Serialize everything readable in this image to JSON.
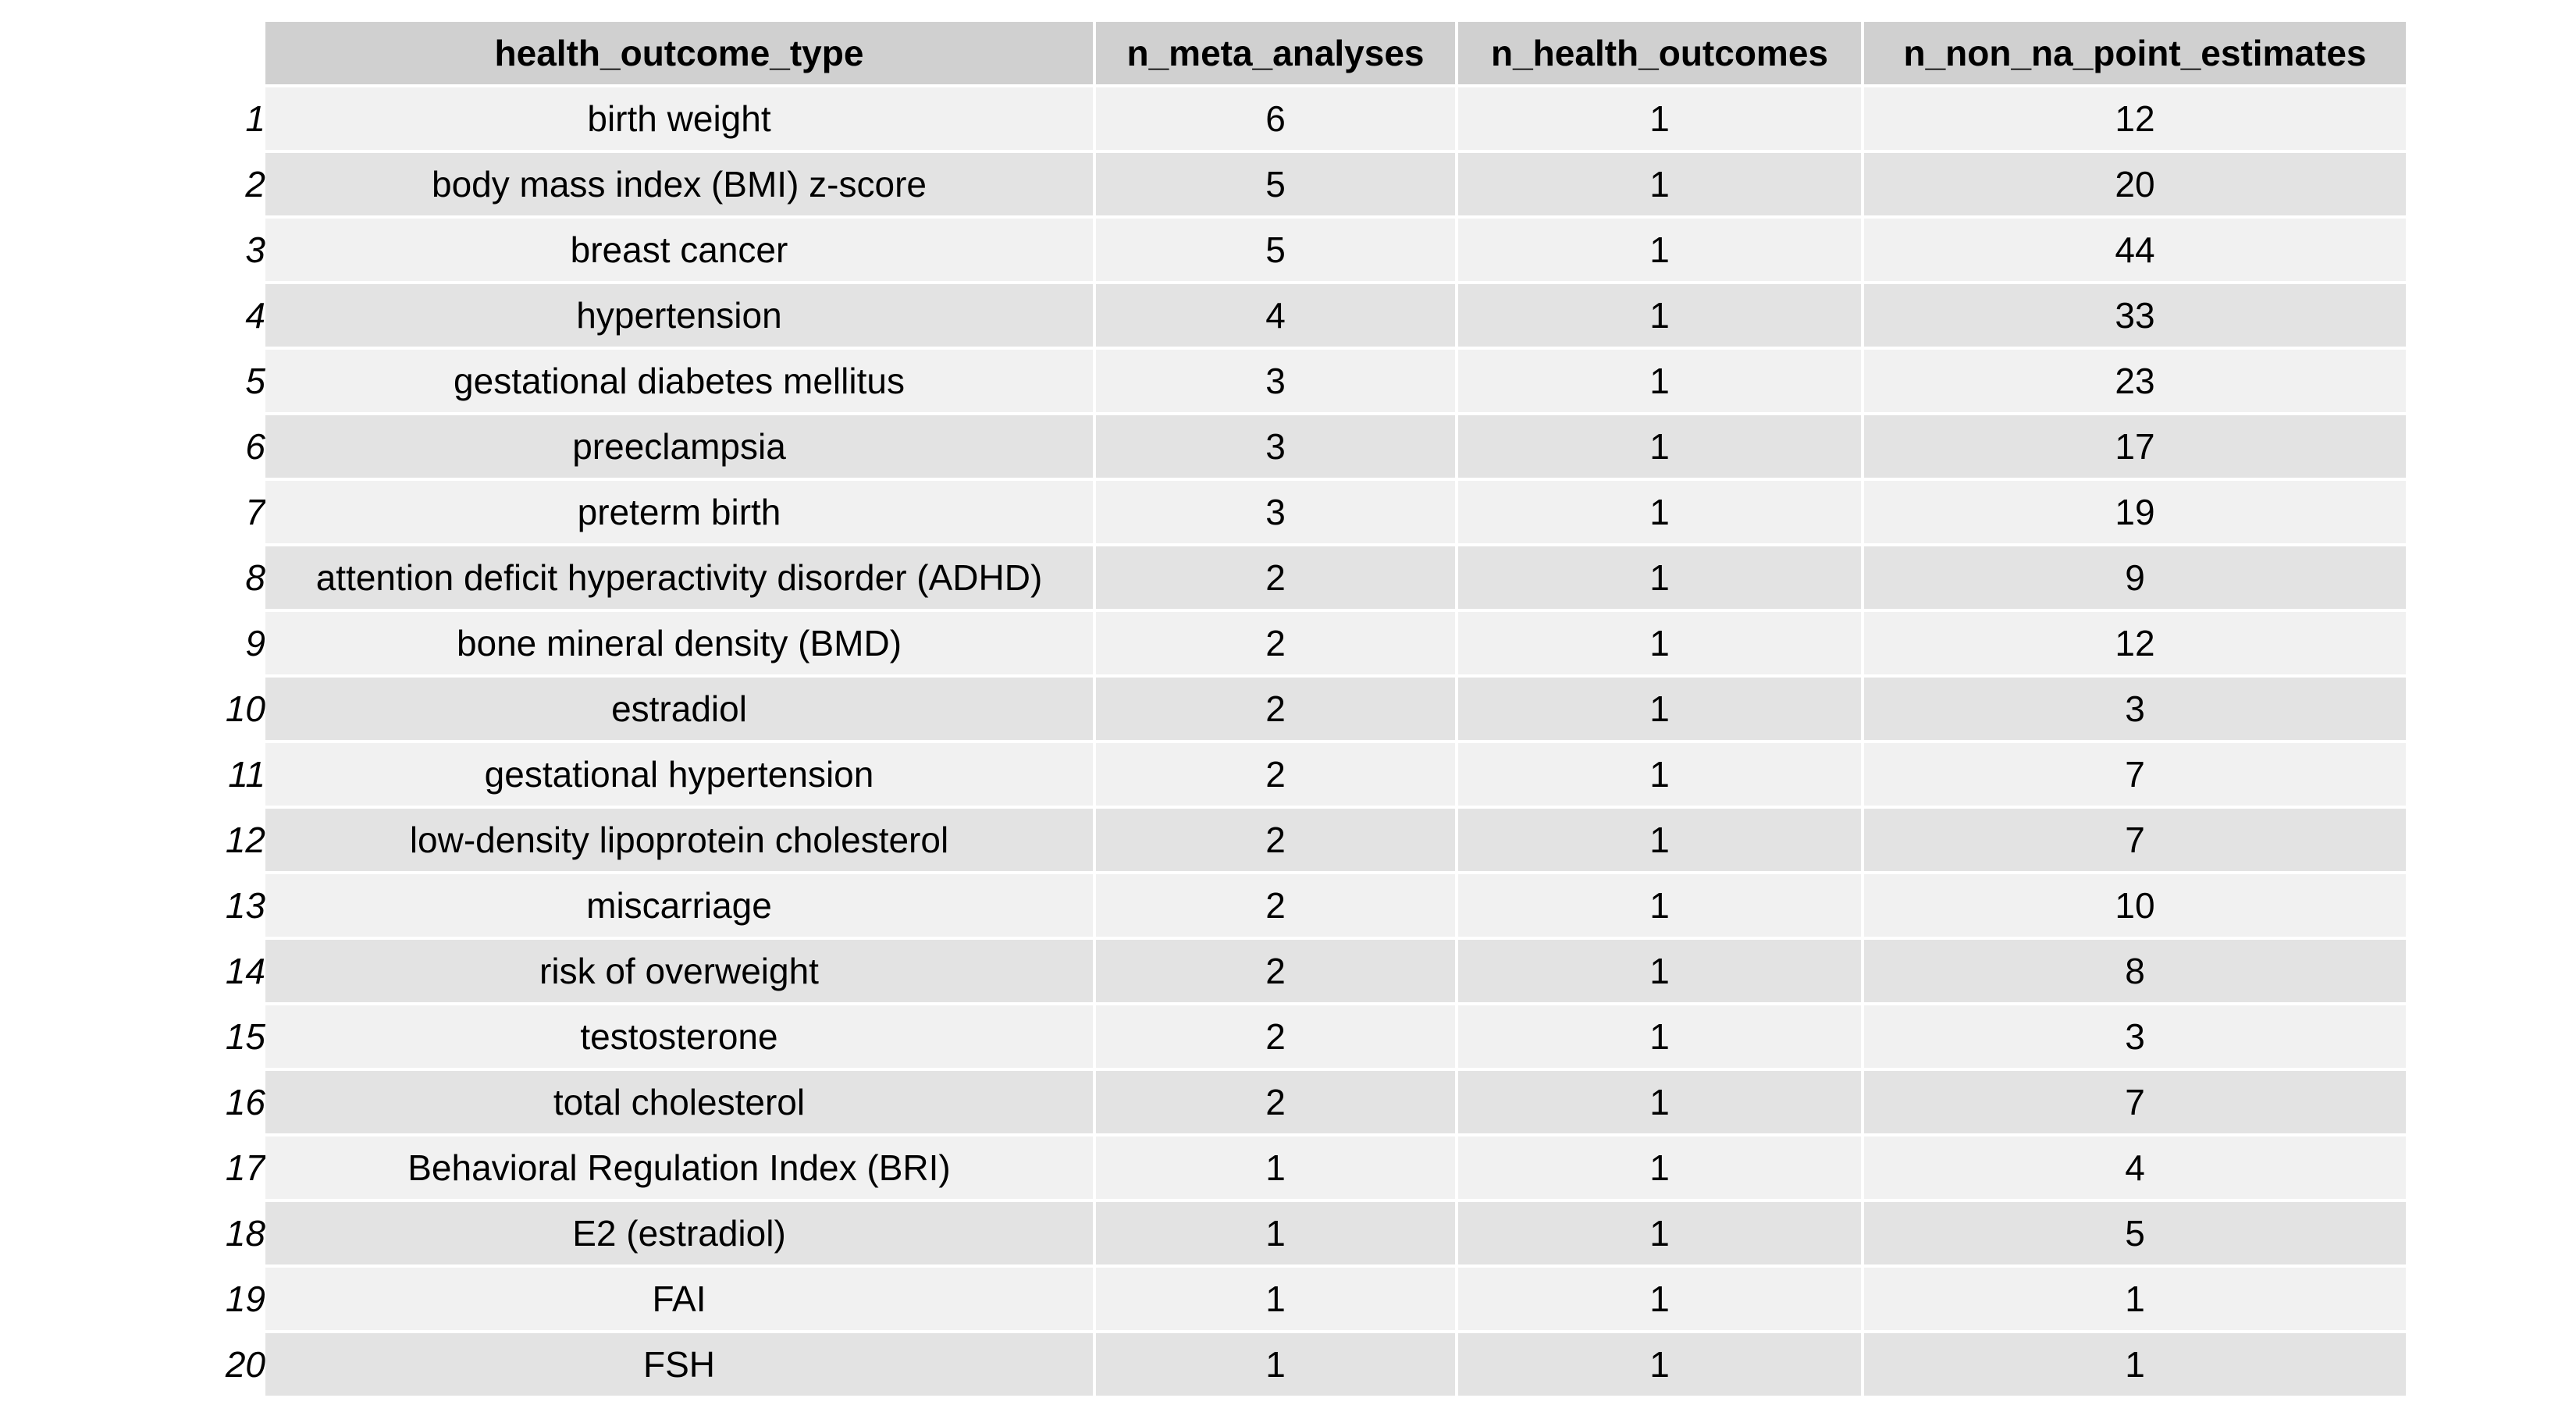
{
  "chart_data": {
    "type": "table",
    "colors": {
      "header_bg": "#d0d0d0",
      "row_light": "#f1f1f1",
      "row_dark": "#e3e3e3",
      "divider": "#ffffff"
    },
    "columns": [
      "health_outcome_type",
      "n_meta_analyses",
      "n_health_outcomes",
      "n_non_na_point_estimates"
    ],
    "row_labels": [
      "1",
      "2",
      "3",
      "4",
      "5",
      "6",
      "7",
      "8",
      "9",
      "10",
      "11",
      "12",
      "13",
      "14",
      "15",
      "16",
      "17",
      "18",
      "19",
      "20"
    ],
    "rows": [
      [
        "birth weight",
        "6",
        "1",
        "12"
      ],
      [
        "body mass index (BMI) z-score",
        "5",
        "1",
        "20"
      ],
      [
        "breast cancer",
        "5",
        "1",
        "44"
      ],
      [
        "hypertension",
        "4",
        "1",
        "33"
      ],
      [
        "gestational diabetes mellitus",
        "3",
        "1",
        "23"
      ],
      [
        "preeclampsia",
        "3",
        "1",
        "17"
      ],
      [
        "preterm birth",
        "3",
        "1",
        "19"
      ],
      [
        "attention deficit hyperactivity disorder (ADHD)",
        "2",
        "1",
        "9"
      ],
      [
        "bone mineral density (BMD)",
        "2",
        "1",
        "12"
      ],
      [
        "estradiol",
        "2",
        "1",
        "3"
      ],
      [
        "gestational hypertension",
        "2",
        "1",
        "7"
      ],
      [
        "low-density lipoprotein cholesterol",
        "2",
        "1",
        "7"
      ],
      [
        "miscarriage",
        "2",
        "1",
        "10"
      ],
      [
        "risk of overweight",
        "2",
        "1",
        "8"
      ],
      [
        "testosterone",
        "2",
        "1",
        "3"
      ],
      [
        "total cholesterol",
        "2",
        "1",
        "7"
      ],
      [
        "Behavioral Regulation Index (BRI)",
        "1",
        "1",
        "4"
      ],
      [
        "E2 (estradiol)",
        "1",
        "1",
        "5"
      ],
      [
        "FAI",
        "1",
        "1",
        "1"
      ],
      [
        "FSH",
        "1",
        "1",
        "1"
      ]
    ]
  }
}
